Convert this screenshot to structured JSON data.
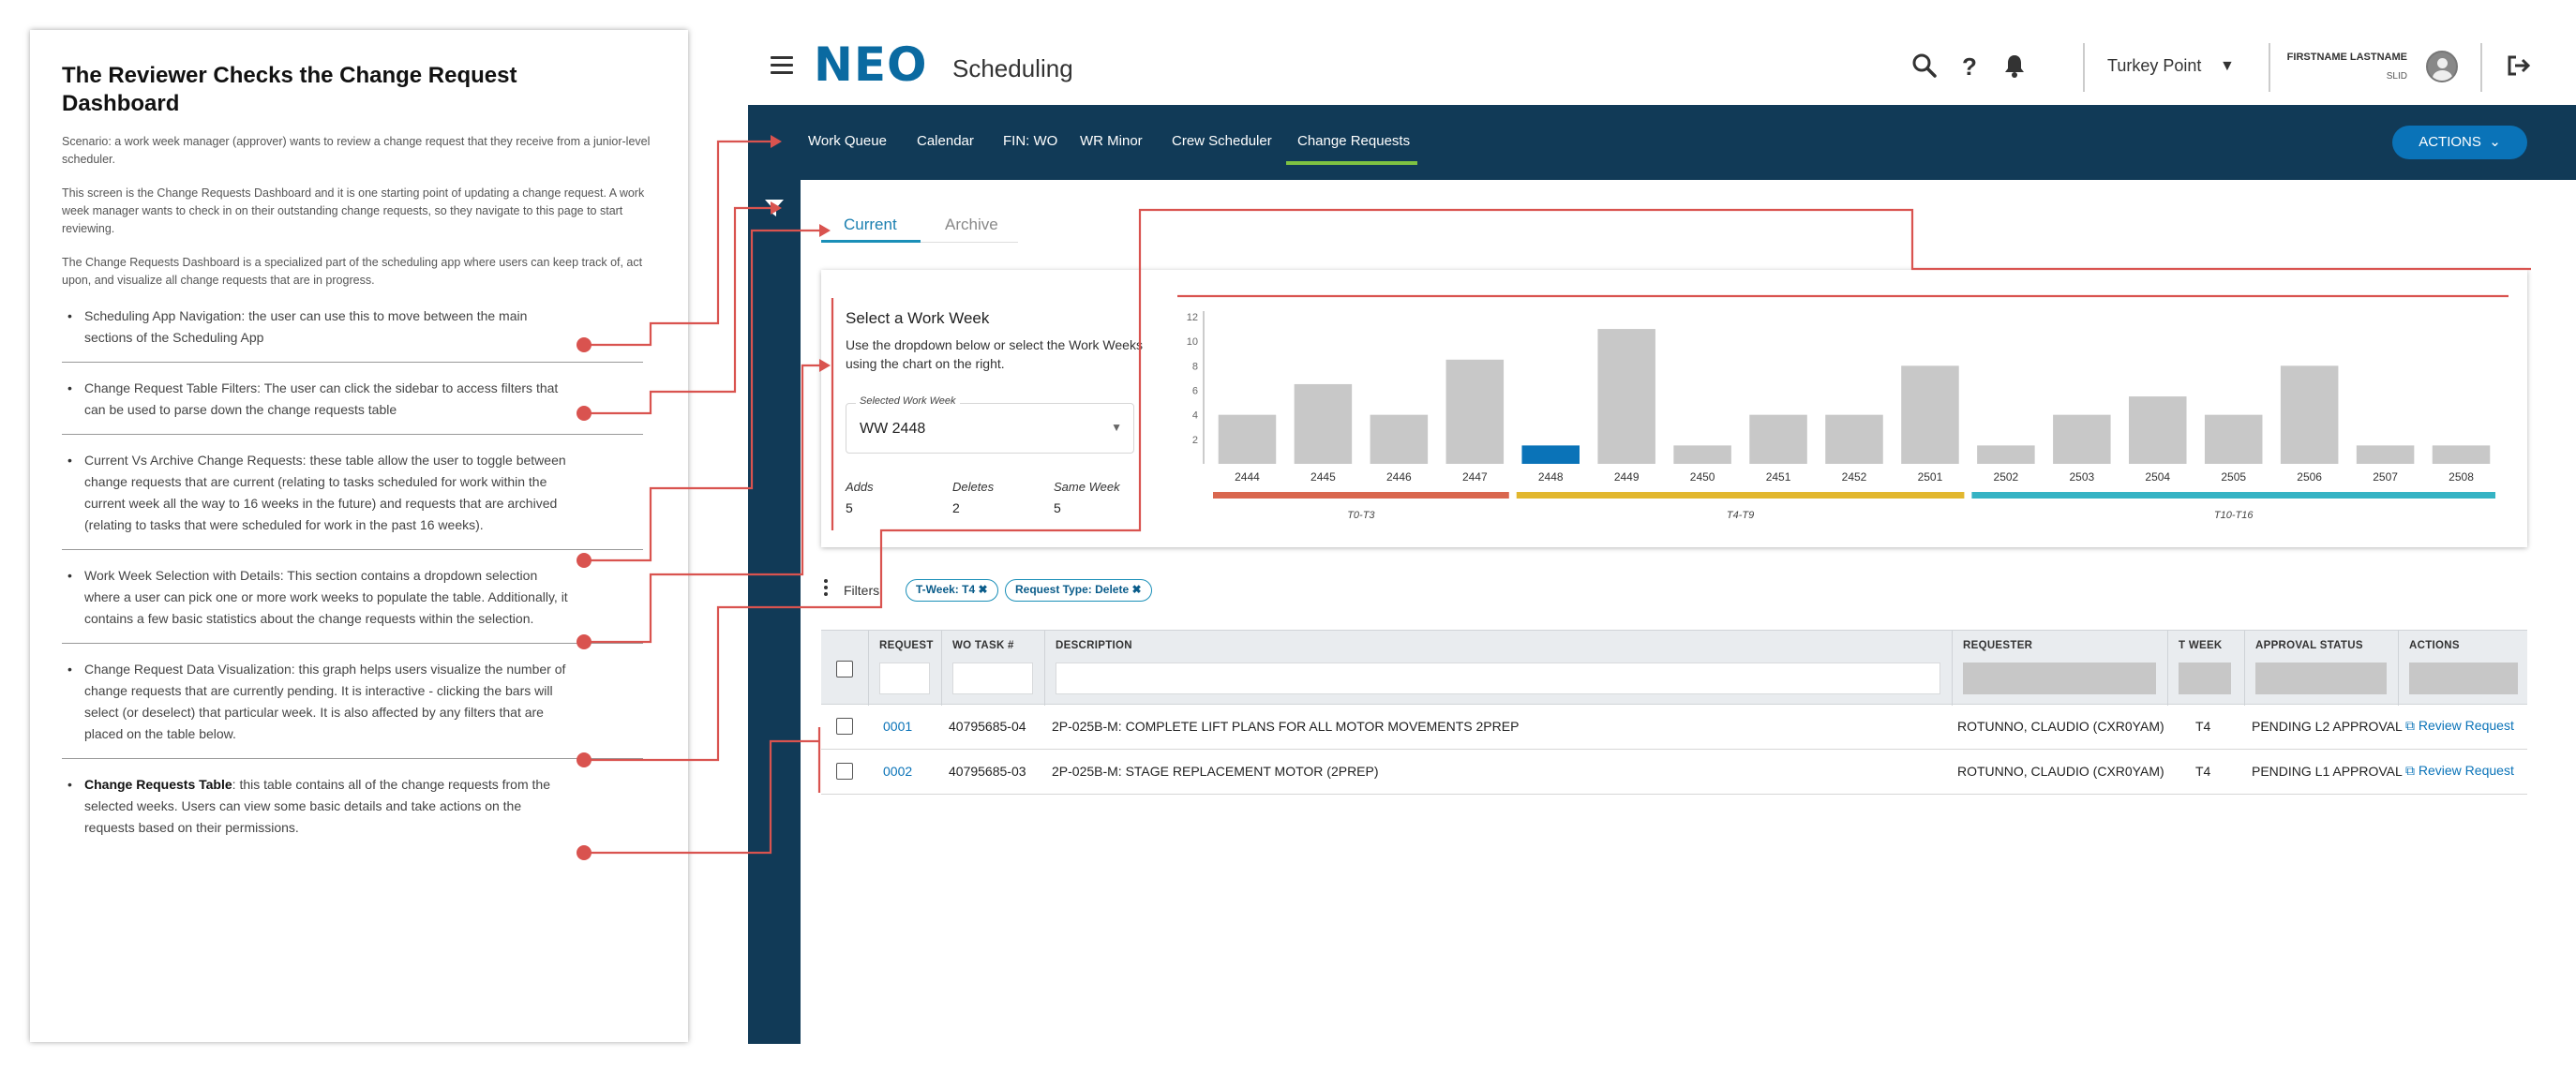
{
  "annotation": {
    "title": "The Reviewer Checks the Change Request Dashboard",
    "intro": [
      "Scenario: a work week manager (approver) wants to review a change request that they receive from a junior-level scheduler.",
      "This screen is the Change Requests Dashboard and it is one starting point of updating a change request. A work week manager wants to check in on their outstanding change requests, so they navigate to this page to start reviewing.",
      "The Change Requests Dashboard is a specialized part of the scheduling app where users can keep track of, act upon, and visualize all change requests that are in progress."
    ],
    "bullets": [
      {
        "bold": "",
        "text": "Scheduling App Navigation: the user can use this to move between the main sections of the Scheduling App"
      },
      {
        "bold": "",
        "text": "Change Request Table Filters: The user can click the sidebar to access filters that can be used to parse down the change requests table"
      },
      {
        "bold": "",
        "text": "Current Vs Archive Change Requests: these table allow the user to toggle between change requests that are current (relating to tasks scheduled for work within the current week all the way to 16 weeks in the future) and requests that are archived (relating to tasks that were scheduled for work in the past 16 weeks)."
      },
      {
        "bold": "",
        "text": "Work Week Selection with Details: This section contains a dropdown selection where a user can pick one or more work weeks to populate the table. Additionally, it contains a few basic statistics about the change requests within the selection."
      },
      {
        "bold": "",
        "text": "Change Request Data Visualization: this graph helps users visualize the number of change requests that are currently pending. It is interactive - clicking the bars will select (or deselect) that particular week. It is also affected by any filters that are placed on the table below."
      },
      {
        "bold": "Change Requests Table",
        "text": ": this table contains all of the change requests from the selected weeks. Users can view some basic details and take actions on the requests based on their permissions."
      }
    ]
  },
  "header": {
    "logo": "NEO",
    "app_title": "Scheduling",
    "site": "Turkey Point",
    "user_name": "FIRSTNAME LASTNAME",
    "user_id": "SLID",
    "icons": [
      "search-icon",
      "help-icon",
      "bell-icon",
      "logout-icon"
    ]
  },
  "nav": {
    "items": [
      "Work Queue",
      "Calendar",
      "FIN: WO",
      "WR Minor",
      "Crew Scheduler",
      "Change Requests"
    ],
    "active": "Change Requests",
    "actions_label": "ACTIONS"
  },
  "tabs": {
    "current": "Current",
    "archive": "Archive",
    "active": "Current"
  },
  "work_week": {
    "title": "Select a Work Week",
    "help": "Use the dropdown below or select the Work Weeks using the chart on the right.",
    "select_label": "Selected Work Week",
    "select_value": "WW 2448",
    "stats": [
      {
        "label": "Adds",
        "value": "5"
      },
      {
        "label": "Deletes",
        "value": "2"
      },
      {
        "label": "Same Week",
        "value": "5"
      }
    ]
  },
  "chart_data": {
    "type": "bar",
    "categories": [
      "2444",
      "2445",
      "2446",
      "2447",
      "2448",
      "2449",
      "2450",
      "2451",
      "2452",
      "2501",
      "2502",
      "2503",
      "2504",
      "2505",
      "2506",
      "2507",
      "2508"
    ],
    "values": [
      4,
      6.5,
      4,
      8.5,
      1.5,
      11,
      1.5,
      4,
      4,
      8,
      1.5,
      4,
      5.5,
      4,
      8,
      1.5,
      1.5
    ],
    "selected": "2448",
    "ylim": [
      0,
      12
    ],
    "yticks": [
      "2",
      "4",
      "6",
      "8",
      "10",
      "12"
    ],
    "groups": [
      {
        "label": "T0-T3",
        "color": "#d9674f",
        "from": 0,
        "to": 3
      },
      {
        "label": "T4-T9",
        "color": "#e2b72e",
        "from": 4,
        "to": 9
      },
      {
        "label": "T10-T16",
        "color": "#35b3c4",
        "from": 10,
        "to": 16
      }
    ],
    "colors": {
      "bar": "#c8c8c8",
      "selected": "#0a73b8"
    },
    "grid": false
  },
  "filters": {
    "label": "Filters:",
    "chips": [
      "T-Week: T4",
      "Request Type: Delete"
    ]
  },
  "table": {
    "columns": [
      "REQUEST",
      "WO TASK #",
      "DESCRIPTION",
      "REQUESTER",
      "T WEEK",
      "APPROVAL STATUS",
      "ACTIONS"
    ],
    "rows": [
      {
        "request": "0001",
        "wo_task": "40795685-04",
        "description": "2P-025B-M: COMPLETE LIFT PLANS FOR ALL MOTOR MOVEMENTS 2PREP",
        "requester": "ROTUNNO, CLAUDIO (CXR0YAM)",
        "t_week": "T4",
        "status": "PENDING L2 APPROVAL",
        "action": "Review Request"
      },
      {
        "request": "0002",
        "wo_task": "40795685-03",
        "description": "2P-025B-M: STAGE REPLACEMENT MOTOR (2PREP)",
        "requester": "ROTUNNO, CLAUDIO (CXR0YAM)",
        "t_week": "T4",
        "status": "PENDING L1 APPROVAL",
        "action": "Review Request"
      }
    ]
  },
  "colors": {
    "navy": "#113a57",
    "accent": "#0a73b8",
    "active_tab_line": "#7ec242",
    "connector": "#d9534f"
  }
}
